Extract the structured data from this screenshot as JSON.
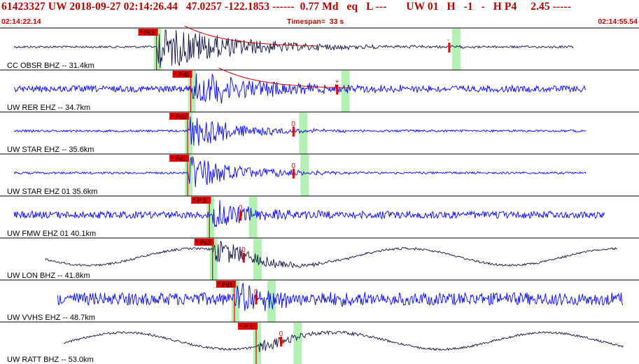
{
  "header": {
    "title": "61423327 UW 2018-09-27 02:14:26.44   47.0257 -122.1853 ------  0.77 Md   eq   L ---       UW 01   H   -1   -   H P4     2.45 -----",
    "start_time": "02:14:22.14",
    "timespan_label": "Timespan=  33 s",
    "end_time": "02:14:55.54"
  },
  "colors": {
    "header_text": "#c00000",
    "trace_blue": "#0000ff",
    "trace_dark": "#101040",
    "pick_marker": "#e00000",
    "window_shade": "#b4f0b4",
    "separator": "#000000",
    "coda_fit": "#c00000"
  },
  "traces": [
    {
      "label": "CC OBSR BHZ -- 31.4km",
      "phase_tag": "^ Pd1",
      "s_mark": "-",
      "color": "dark",
      "amp": 36,
      "noise": 1.5,
      "arrival": 0.24,
      "coda": true,
      "s_time": 0.71
    },
    {
      "label": "UW RER EHZ -- 34.7km",
      "phase_tag": "^ Pd0",
      "s_mark": "+",
      "color": "blue",
      "amp": 26,
      "noise": 4.5,
      "arrival": 0.295,
      "coda": true,
      "s_time": 0.53
    },
    {
      "label": "UW STAR EHZ -- 35.6km",
      "phase_tag": "^ Pd0",
      "s_mark": "0",
      "color": "blue",
      "amp": 28,
      "noise": 1.5,
      "arrival": 0.29,
      "coda": false,
      "s_time": 0.46
    },
    {
      "label": "UW STAR EHZ 01 35.6km",
      "phase_tag": "^ Pd1",
      "s_mark": "0",
      "color": "blue",
      "amp": 28,
      "noise": 1.5,
      "arrival": 0.29,
      "coda": false,
      "s_time": 0.46
    },
    {
      "label": "UW FMW EHZ 01 40.1km",
      "phase_tag": "^ P 3",
      "s_mark": "0",
      "color": "blue",
      "amp": 22,
      "noise": 5,
      "arrival": 0.325,
      "coda": false,
      "s_time": 0.375
    },
    {
      "label": "UW LON BHZ -- 41.8km",
      "phase_tag": "^ Pd3",
      "s_mark": "0",
      "color": "dark",
      "amp": 20,
      "noise": 1.5,
      "arrival": 0.33,
      "coda": false,
      "s_time": 0.38
    },
    {
      "label": "UW VVHS EHZ -- 48.7km",
      "phase_tag": "^ Pd1",
      "s_mark": "0",
      "color": "blue",
      "amp": 20,
      "noise": 9,
      "arrival": 0.365,
      "coda": false,
      "s_time": 0.4
    },
    {
      "label": "UW RATT BHZ -- 53.0km",
      "phase_tag": "^ P 2",
      "s_mark": "0",
      "color": "dark",
      "amp": 10,
      "noise": 1.5,
      "arrival": 0.4,
      "coda": false,
      "s_time": 0.44
    }
  ]
}
